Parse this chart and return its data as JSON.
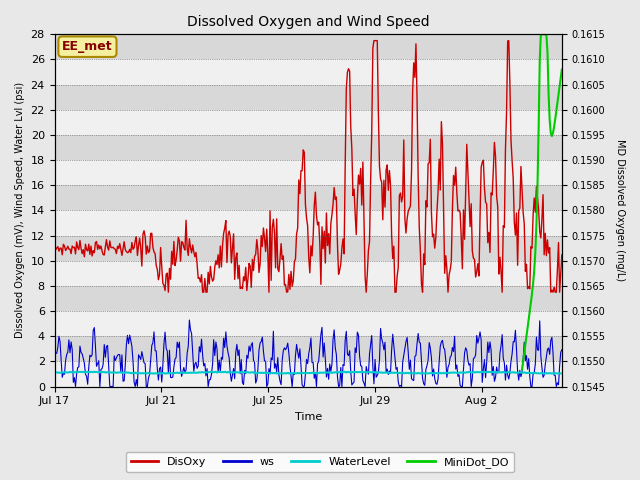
{
  "title": "Dissolved Oxygen and Wind Speed",
  "ylabel_left": "Dissolved Oxygen (mV), Wind Speed, Water Lvl (psi)",
  "ylabel_right": "MD Dissolved Oxygen (mg/L)",
  "xlabel": "Time",
  "ylim_left": [
    0,
    28
  ],
  "ylim_right": [
    0.1545,
    0.1615
  ],
  "yticks_left": [
    0,
    2,
    4,
    6,
    8,
    10,
    12,
    14,
    16,
    18,
    20,
    22,
    24,
    26,
    28
  ],
  "yticks_right": [
    0.1545,
    0.155,
    0.1555,
    0.156,
    0.1565,
    0.157,
    0.1575,
    0.158,
    0.1585,
    0.159,
    0.1595,
    0.16,
    0.1605,
    0.161,
    0.1615
  ],
  "xtick_labels": [
    "Jul 17",
    "Jul 21",
    "Jul 25",
    "Jul 29",
    "Aug 2"
  ],
  "xtick_positions": [
    0,
    4,
    8,
    12,
    16
  ],
  "xlim": [
    0,
    19
  ],
  "annotation_box": "EE_met",
  "bg_color": "#e8e8e8",
  "plot_bg_color": "#e0e0e0",
  "legend_colors": [
    "#cc0000",
    "#0000cc",
    "#00cccc",
    "#00cc00"
  ],
  "legend_labels": [
    "DisOxy",
    "ws",
    "WaterLevel",
    "MiniDot_DO"
  ],
  "disoxy_color": "#cc0000",
  "ws_color": "#0000cc",
  "water_color": "#00cccc",
  "minidot_color": "#00cc00",
  "grid_color_light": "#f0f0f0",
  "grid_color_dark": "#d8d8d8"
}
